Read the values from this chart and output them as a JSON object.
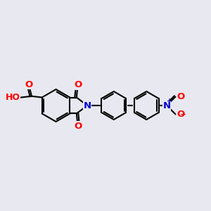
{
  "bg_color": "#e8e8f0",
  "bond_color": "#000000",
  "bond_width": 1.5,
  "colors": {
    "O": "#ff0000",
    "N": "#0000cc",
    "C": "#000000"
  },
  "font_size_atom": 9.5,
  "font_size_small": 7.5
}
